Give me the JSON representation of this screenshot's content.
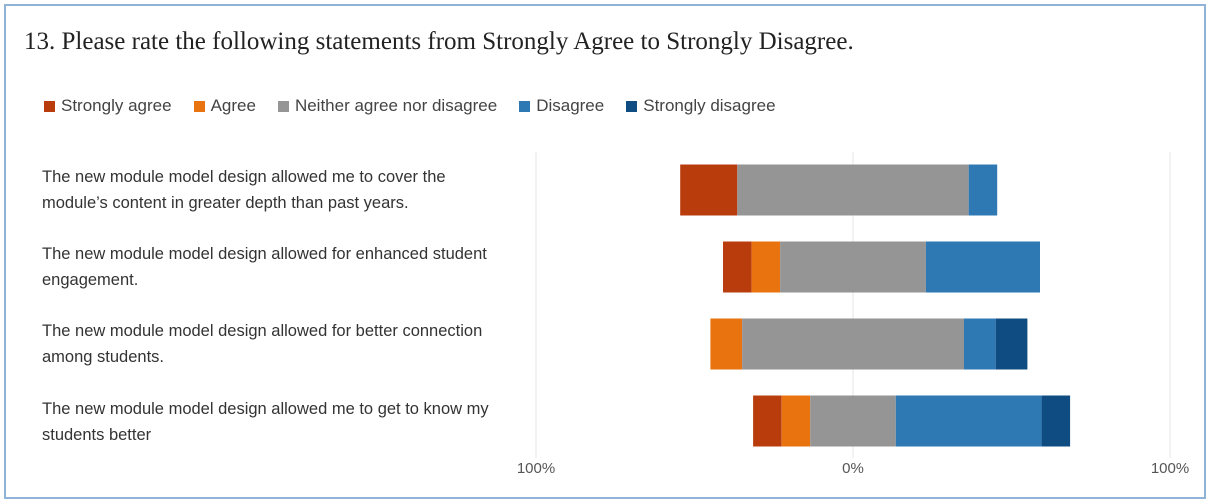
{
  "question": "13. Please rate the following statements from Strongly Agree to Strongly Disagree.",
  "colors": {
    "strongly_agree": "#b83c0c",
    "agree": "#e8730f",
    "neither": "#959595",
    "disagree": "#2e78b3",
    "strongly_disagree": "#0f4c82"
  },
  "chart_data": {
    "type": "bar",
    "orientation": "horizontal",
    "stacked": "diverging",
    "categories": [
      "The new module model design allowed me to cover the module’s content in greater depth than past years.",
      "The new module model design allowed for enhanced student engagement.",
      "The new module model design allowed for better connection among students.",
      "The new module model design allowed me to get to know my students better"
    ],
    "series": [
      {
        "name": "Strongly agree",
        "values": [
          18,
          9,
          0,
          9
        ]
      },
      {
        "name": "Agree",
        "values": [
          0,
          9,
          10,
          9
        ]
      },
      {
        "name": "Neither agree nor disagree",
        "values": [
          73,
          46,
          70,
          27
        ]
      },
      {
        "name": "Disagree",
        "values": [
          9,
          36,
          10,
          46
        ]
      },
      {
        "name": "Strongly disagree",
        "values": [
          0,
          0,
          10,
          9
        ]
      }
    ],
    "xlim": [
      -100,
      100
    ],
    "x_ticks": [
      "100%",
      "0%",
      "100%"
    ],
    "legend_position": "top",
    "grid": true
  }
}
